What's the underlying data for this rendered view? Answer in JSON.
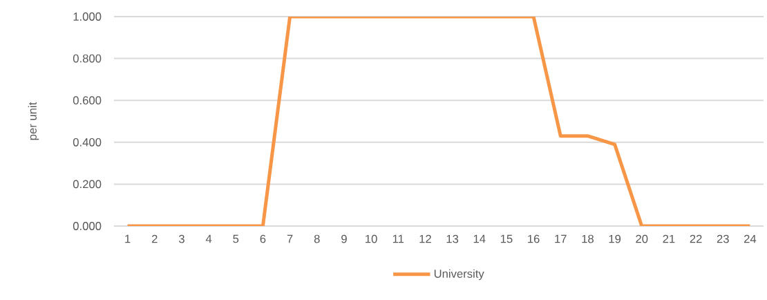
{
  "chart_data": {
    "type": "line",
    "ylabel": "per unit",
    "categories": [
      "1",
      "2",
      "3",
      "4",
      "5",
      "6",
      "7",
      "8",
      "9",
      "10",
      "11",
      "12",
      "13",
      "14",
      "15",
      "16",
      "17",
      "18",
      "19",
      "20",
      "21",
      "22",
      "23",
      "24"
    ],
    "series": [
      {
        "name": "University",
        "color": "#f79646",
        "values": [
          0,
          0,
          0,
          0,
          0,
          0,
          1,
          1,
          1,
          1,
          1,
          1,
          1,
          1,
          1,
          1,
          0.43,
          0.43,
          0.39,
          0,
          0,
          0,
          0,
          0
        ]
      }
    ],
    "ylim": [
      0,
      1
    ],
    "yticks": [
      {
        "value": 0,
        "label": "0.000"
      },
      {
        "value": 0.2,
        "label": "0.200"
      },
      {
        "value": 0.4,
        "label": "0.400"
      },
      {
        "value": 0.6,
        "label": "0.600"
      },
      {
        "value": 0.8,
        "label": "0.800"
      },
      {
        "value": 1,
        "label": "1.000"
      }
    ],
    "grid": "y",
    "legend": "bottom",
    "marker": "none",
    "line_style": "solid"
  }
}
